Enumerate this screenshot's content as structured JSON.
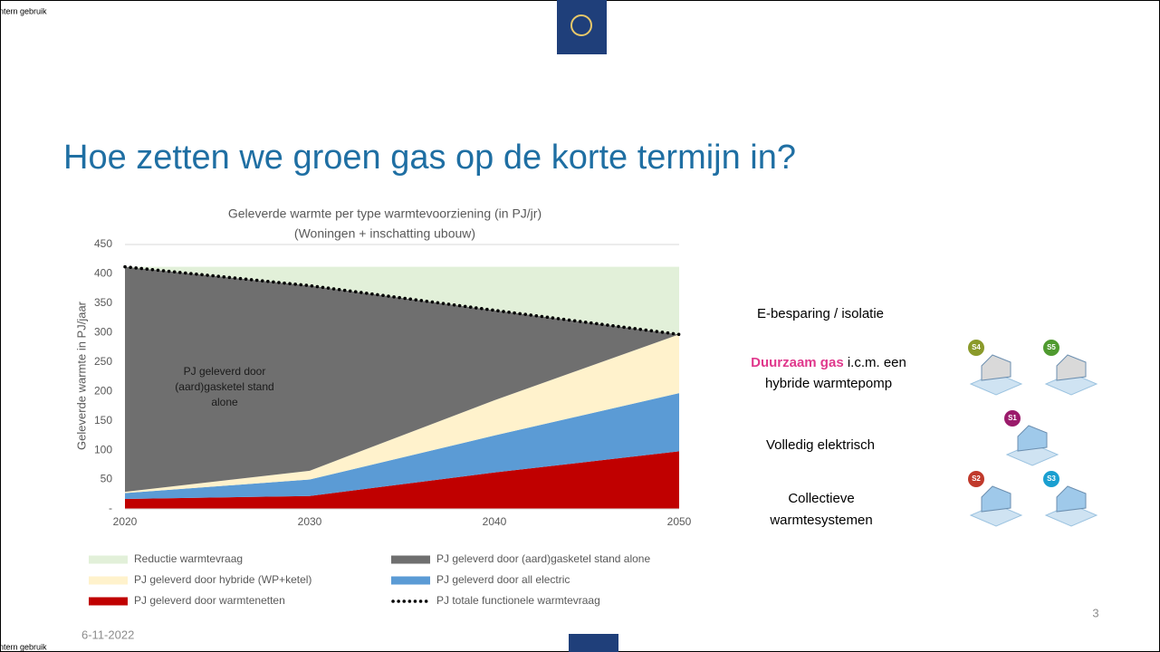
{
  "slide": {
    "corner_label_top": "ntern gebruik",
    "corner_label_bottom": "ntern gebruik",
    "heading": "Hoe zetten we groen gas op de korte termijn in?",
    "date": "6-11-2022",
    "page_number": "3",
    "options": [
      {
        "lines": [
          "E-besparing / isolatie"
        ]
      },
      {
        "highlight": "Duurzaam gas",
        "lines": [
          "i.c.m. een",
          "hybride warmtepomp"
        ],
        "badges": [
          "S4",
          "S5"
        ]
      },
      {
        "lines": [
          "Volledig elektrisch"
        ],
        "badges": [
          "S1"
        ]
      },
      {
        "lines": [
          "Collectieve",
          "warmtesystemen"
        ],
        "badges": [
          "S2",
          "S3"
        ]
      }
    ]
  },
  "chart_data": {
    "type": "area",
    "stacked": true,
    "title": "Geleverde warmte per type warmtevoorziening (in PJ/jr)",
    "subtitle": "(Woningen + inschatting ubouw)",
    "y_label": "Geleverde warmte in PJ/jaar",
    "annotation": [
      "PJ geleverd door",
      "(aard)gasketel stand",
      "alone"
    ],
    "x": [
      2020,
      2030,
      2040,
      2050
    ],
    "xlim": [
      2020,
      2050
    ],
    "xticks": [
      2020,
      2030,
      2040,
      2050
    ],
    "ylim": [
      0,
      450
    ],
    "yticks": [
      {
        "value": 0,
        "label": "-"
      },
      50,
      100,
      150,
      200,
      250,
      300,
      350,
      400,
      450
    ],
    "legend": "bottom",
    "series": [
      {
        "name": "Reductie warmtevraag",
        "color": "#e2f0d9",
        "values": [
          0,
          32,
          74,
          115
        ]
      },
      {
        "name": "PJ geleverd door (aard)gasketel stand alone",
        "color": "#6f6f6f",
        "values": [
          383,
          315,
          153,
          0
        ]
      },
      {
        "name": "PJ geleverd door hybride (WP+ketel)",
        "color": "#fff2cc",
        "values": [
          2,
          15,
          60,
          100
        ]
      },
      {
        "name": "PJ geleverd door all electric",
        "color": "#5b9bd5",
        "values": [
          10,
          28,
          63,
          99
        ]
      },
      {
        "name": "PJ geleverd door warmtenetten",
        "color": "#c00000",
        "values": [
          17,
          22,
          62,
          98
        ]
      },
      {
        "name": "PJ totale functionele warmtevraag",
        "type": "line",
        "color": "#000000",
        "values": [
          412,
          380,
          338,
          297
        ]
      }
    ]
  }
}
